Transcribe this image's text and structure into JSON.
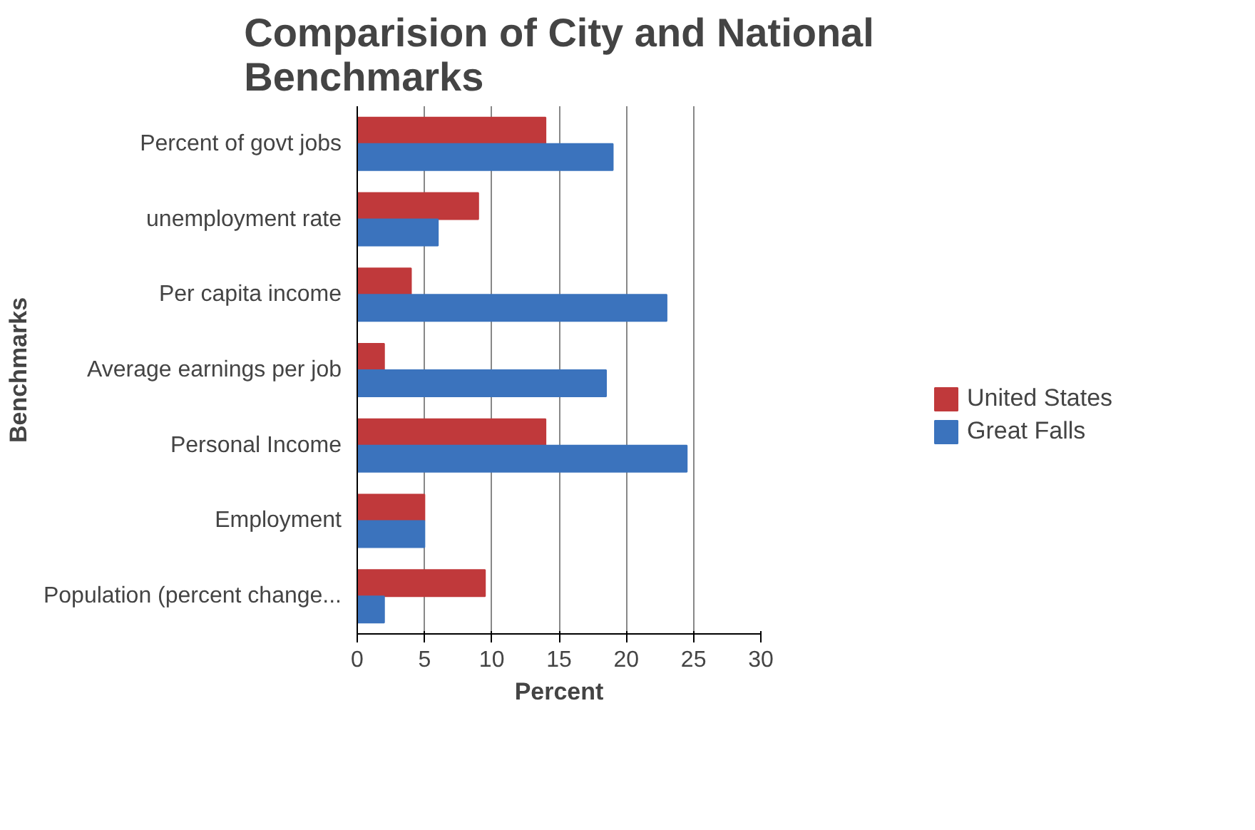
{
  "chart_data": {
    "type": "bar",
    "orientation": "horizontal",
    "title": "Comparision of City and National Benchmarks",
    "xlabel": "Percent",
    "ylabel": "Benchmarks",
    "categories": [
      "Percent of govt jobs",
      "unemployment rate",
      "Per capita income",
      "Average earnings per job",
      "Personal Income",
      "Employment",
      "Population (percent change..."
    ],
    "series": [
      {
        "name": "United States",
        "color": "#c0393b",
        "values": [
          14,
          9,
          4,
          2,
          14,
          5,
          9.5
        ]
      },
      {
        "name": "Great Falls",
        "color": "#3b73bd",
        "values": [
          19,
          6,
          23,
          18.5,
          24.5,
          5,
          2
        ]
      }
    ],
    "xlim": [
      0,
      30
    ],
    "xticks": [
      0,
      5,
      10,
      15,
      20,
      25,
      30
    ],
    "grid": "x",
    "legend": "right"
  }
}
